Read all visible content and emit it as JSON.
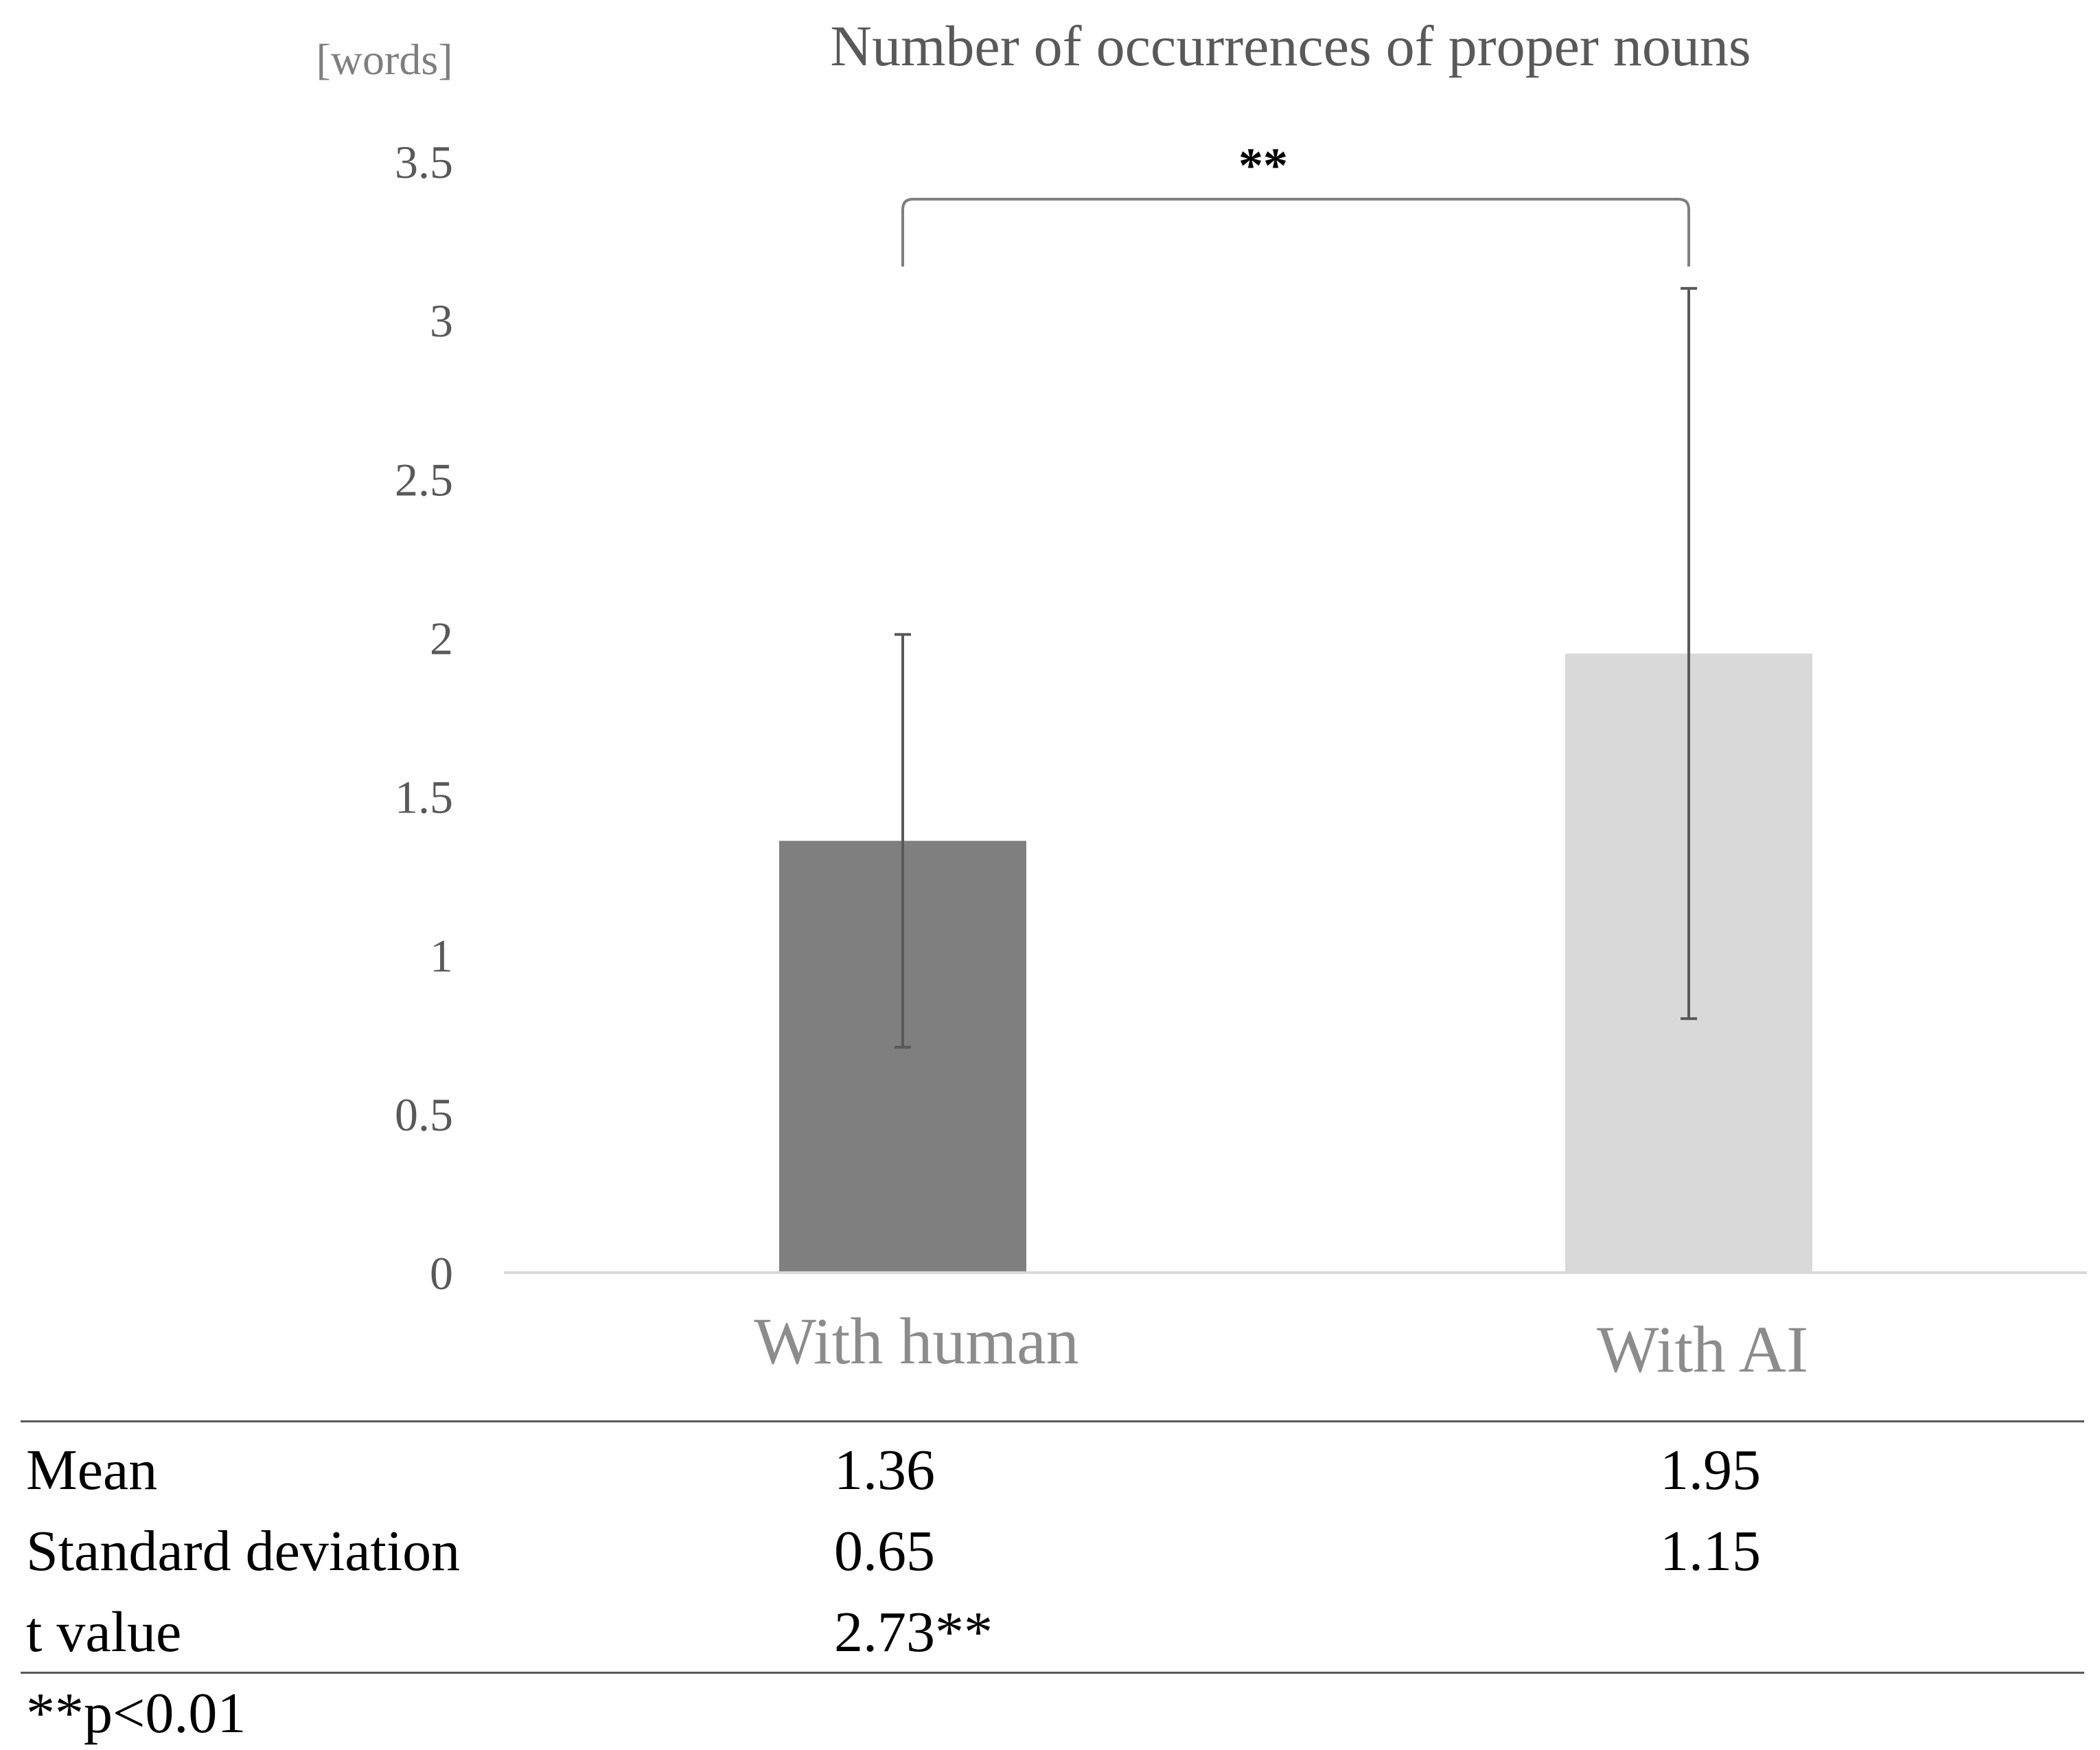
{
  "chart_data": {
    "type": "bar",
    "title": "Number of occurrences of proper nouns",
    "unit_label": "[words]",
    "categories": [
      "With human",
      "With AI"
    ],
    "values": [
      1.36,
      1.95
    ],
    "error": [
      0.65,
      1.15
    ],
    "colors": [
      "#7f7f7f",
      "#d9d9d9"
    ],
    "ylim": [
      0,
      3.5
    ],
    "yticks": [
      "0",
      "0.5",
      "1",
      "1.5",
      "2",
      "2.5",
      "3",
      "3.5"
    ],
    "significance": "**",
    "grid": false,
    "legend": "none"
  },
  "stats_table": {
    "rows": [
      {
        "label": "Mean",
        "human": "1.36",
        "ai": "1.95"
      },
      {
        "label": "Standard deviation",
        "human": "0.65",
        "ai": "1.15"
      },
      {
        "label": "t value",
        "human": "2.73**",
        "ai": ""
      }
    ],
    "note": "**p<0.01"
  }
}
